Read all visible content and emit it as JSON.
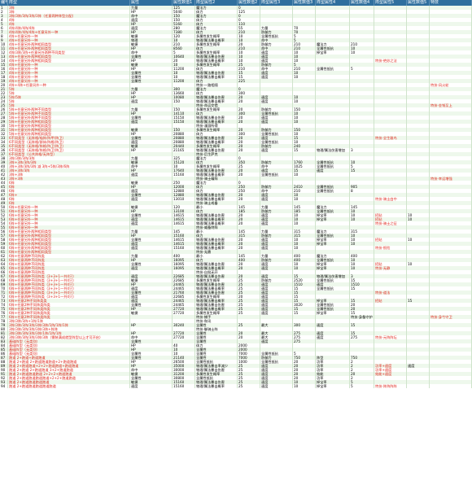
{
  "headers": [
    "编号",
    "阵型",
    "属性",
    "属性数值1",
    "阵型属性2",
    "属性数值2",
    "阵型属性3",
    "属性数值3",
    "阵型属性4",
    "属性数值4",
    "阵型属性5",
    "属性数值5",
    "特技"
  ],
  "rows": [
    [
      "1",
      "3阵",
      "力量",
      "125",
      "魔法力",
      "0",
      "",
      "",
      "",
      "",
      "",
      "",
      ""
    ],
    [
      "2",
      "3阵",
      "HP",
      "5040",
      "体力",
      "125",
      "",
      "",
      "",
      "",
      "",
      "",
      ""
    ],
    [
      "3",
      "3阵/3阵/3阵/3阵/3阵（任意两种阵型分配）",
      "命中",
      "150",
      "魔法力",
      "0",
      "",
      "",
      "",
      "",
      "",
      "",
      ""
    ],
    [
      "4",
      "4阵",
      "速度",
      "150",
      "体力",
      "0",
      "",
      "",
      "",
      "",
      "",
      "",
      ""
    ],
    [
      "5",
      "4阵",
      "HP",
      "5160",
      "体力",
      "110",
      "",
      "",
      "",
      "",
      "",
      "",
      ""
    ],
    [
      "6",
      "4阵/4阵/4阵/4阵",
      "速度",
      "280",
      "魔法力",
      "55",
      "力量",
      "70",
      "",
      "",
      "",
      "",
      ""
    ],
    [
      "7",
      "4阵/4阵/4阵/4阵+任意另外一种",
      "HP",
      "7380",
      "体力",
      "210",
      "防御力",
      "70",
      "",
      "",
      "",
      "",
      ""
    ],
    [
      "8",
      "4阵+任意另外一种",
      "敏捷",
      "120",
      "多属性发生概率",
      "10",
      "全属性抵抗",
      "5",
      "",
      "",
      "",
      "",
      ""
    ],
    [
      "9",
      "4阵+任意另外一种",
      "物理",
      "10",
      "物理/属法暴击概率",
      "10",
      "命中",
      "5",
      "",
      "",
      "",
      "",
      ""
    ],
    [
      "10",
      "4阵+任意另外两种相同类型",
      "敏捷",
      "210",
      "多属性发生概率",
      "20",
      "防御力",
      "210",
      "魔法力",
      "210",
      "",
      "",
      ""
    ],
    [
      "11",
      "4阵+任意另外两种相同类型",
      "HP",
      "8560",
      "体力",
      "210",
      "命中",
      "210",
      "全属性抵抗",
      "10",
      "",
      "",
      ""
    ],
    [
      "12",
      "4阵/3阵/3阵+任意另外两种不同类型",
      "命中",
      "5",
      "多属性发生概率",
      "10",
      "速度",
      "10",
      "掉宝率",
      "10",
      "",
      "",
      ""
    ],
    [
      "13",
      "4阵+任意另外两种相同类型",
      "全属性",
      "10640",
      "物理/属法暴击伤害",
      "10",
      "速度",
      "10",
      "",
      "",
      "",
      "",
      ""
    ],
    [
      "14",
      "4阵+任意另外两种相同类型",
      "HP",
      "20",
      "物理/属法暴击概率",
      "10",
      "速度",
      "10",
      "",
      "",
      "特技-绝妙之法",
      "",
      ""
    ],
    [
      "15",
      "4阵+任意另外一种",
      "敏捷",
      "10",
      "多属性发生概率",
      "25",
      "防御力",
      "5",
      "",
      "",
      "",
      "",
      ""
    ],
    [
      "16",
      "4阵+任意另外一种",
      "HP",
      "11200",
      "体力",
      "210",
      "命中",
      "210",
      "全属性抵抗",
      "5",
      "",
      "",
      ""
    ],
    [
      "17",
      "4阵+任意另外一种",
      "全属性",
      "10",
      "物理/属法暴击伤害",
      "15",
      "速度",
      "10",
      "",
      "",
      "",
      "",
      ""
    ],
    [
      "18",
      "4阵+任意另外一种",
      "全属性",
      "10",
      "物理/属法暴击概率",
      "15",
      "速度",
      "10",
      "",
      "",
      "",
      "",
      ""
    ],
    [
      "19",
      "4阵+任意另外一种",
      "全属性",
      "11200",
      "体力",
      "225",
      "",
      "",
      "",
      "",
      "",
      "",
      ""
    ],
    [
      "20",
      "4阵+4阵+任意另外一种",
      "",
      "",
      "特技-一路相随",
      "",
      "",
      "",
      "",
      "",
      "",
      "",
      "特技-风火轮"
    ],
    [
      "21",
      "5阵",
      "力量",
      "300",
      "魔法力",
      "0",
      "",
      "",
      "",
      "",
      "",
      "",
      ""
    ],
    [
      "22",
      "5阵",
      "HP",
      "13660",
      "体力",
      "300",
      "",
      "",
      "",
      "",
      "",
      "",
      ""
    ],
    [
      "23",
      "5阵/5阵",
      "HP",
      "10080",
      "物理/属法暴击伤害",
      "20",
      "速度",
      "10",
      "",
      "",
      "",
      "",
      ""
    ],
    [
      "24",
      "5阵",
      "速度",
      "150",
      "物理/属法暴击概率",
      "20",
      "速度",
      "10",
      "",
      "",
      "",
      "",
      ""
    ],
    [
      "25",
      "5阵",
      "",
      "",
      "特技-命运交错",
      "",
      "",
      "",
      "",
      "",
      "",
      "",
      "特技-金钱至上"
    ],
    [
      "26",
      "5阵+任意另外两种不同类型",
      "力量",
      "150",
      "多属性发生概率",
      "20",
      "防御力",
      "150",
      "",
      "",
      "",
      "",
      ""
    ],
    [
      "27",
      "5阵+任意另外两种不同类型",
      "HP",
      "14110",
      "体力",
      "300",
      "全属性抵抗",
      "10",
      "",
      "",
      "",
      "",
      ""
    ],
    [
      "28",
      "5阵+任意另外两种不同类型",
      "全属性",
      "15150",
      "物理/属法暴击伤害",
      "20",
      "速度",
      "10",
      "",
      "",
      "",
      "",
      ""
    ],
    [
      "29",
      "5阵+任意另外两种相同类型",
      "速度",
      "15150",
      "物理/属法暴击概率",
      "20",
      "速度",
      "10",
      "",
      "",
      "",
      "",
      ""
    ],
    [
      "30",
      "5阵+任意另外两种相同类型",
      "",
      "",
      "特技-漫游所得",
      "",
      "",
      "",
      "",
      "",
      "",
      "",
      ""
    ],
    [
      "31",
      "5阵+任意另外两种相同类型",
      "敏捷",
      "150",
      "多属性发生概率",
      "20",
      "防御力",
      "150",
      "",
      "",
      "",
      "",
      ""
    ],
    [
      "32",
      "5阵+任意另外两种相同类型",
      "HP",
      "20880",
      "体力",
      "300",
      "全属性抵抗",
      "10",
      "",
      "",
      "",
      "",
      ""
    ],
    [
      "33",
      "6不同类型（无阵格/喵阵/阵甲/阵卫）",
      "全属性",
      "20880",
      "物理/属法暴击伤害",
      "20",
      "速度",
      "15",
      "",
      "",
      "特技-全生雅鸟",
      "",
      ""
    ],
    [
      "34",
      "6不同类型（无阵格/群体/阵格/阵卫）",
      "速度",
      "20880",
      "物理/属法暴击概率",
      "20",
      "全属性抵抗",
      "10",
      "",
      "",
      "",
      "",
      ""
    ],
    [
      "35",
      "6不同类型（无阵格/阵格/阵卫/阵卫）",
      "敏捷",
      "20440",
      "多属性发生概率",
      "20",
      "防御力",
      "240",
      "",
      "",
      "",
      "",
      ""
    ],
    [
      "36",
      "6不同类型（无阵格/阵格/阵卫/阵卫）",
      "HP",
      "21165",
      "物理/属法暴击伤害",
      "20",
      "速度",
      "15",
      "物理/属法伤害增加",
      "3",
      "",
      "",
      ""
    ],
    [
      "37",
      "6不同类型（公共阵格/无阵型）",
      "",
      "",
      "特技-后生萨克",
      "",
      "",
      "",
      "",
      "",
      "",
      "",
      ""
    ],
    [
      "38",
      "3阵/3阵/3阵/3阵",
      "力量",
      "325",
      "魔法力",
      "0",
      "",
      "",
      "",
      "",
      "",
      "",
      ""
    ],
    [
      "39",
      "3阵+3阵/3阵/3阵",
      "敏捷",
      "15120",
      "体力",
      "350",
      "防御力",
      "1760",
      "全属性抵抗",
      "10",
      "",
      "",
      ""
    ],
    [
      "40",
      "3阵+3阵/3阵/3阵 减 3阵+5阵/3阵/6阵",
      "命中",
      "10",
      "多属性发生概率",
      "25",
      "命中",
      "1025",
      "全属性抵抗",
      "5",
      "",
      "",
      ""
    ],
    [
      "41",
      "3阵+3阵/3阵",
      "HP",
      "17640",
      "物理/属法暴击伤害",
      "20",
      "速度",
      "15",
      "速度",
      "15",
      "",
      "",
      ""
    ],
    [
      "42",
      "3阵+3阵",
      "速度",
      "15160",
      "物理/属法暴击概率",
      "20",
      "全属性抵抗",
      "10",
      "",
      "",
      "",
      "",
      ""
    ],
    [
      "43",
      "3阵+3阵",
      "",
      "",
      "特技-骑士精阵",
      "",
      "",
      "",
      "",
      "",
      "",
      "",
      "特技-幸运增强"
    ],
    [
      "44",
      "6阵",
      "敏捷",
      "250",
      "魔法力",
      "0",
      "",
      "",
      "",
      "",
      "",
      "",
      ""
    ],
    [
      "45",
      "6阵",
      "HP",
      "12000",
      "体力",
      "250",
      "防御力",
      "2410",
      "全属性抵抗",
      "905",
      "",
      "",
      ""
    ],
    [
      "46",
      "6阵",
      "速度",
      "12880",
      "体力",
      "250",
      "命中",
      "210",
      "全属性抵抗",
      "8",
      "",
      "",
      ""
    ],
    [
      "47",
      "6阵+",
      "全属性",
      "12880",
      "物理/属法暴击伤害",
      "20",
      "速度",
      "10",
      "",
      "",
      "",
      "",
      ""
    ],
    [
      "48",
      "6阵",
      "速度",
      "13010",
      "物理/属法暴击概率",
      "20",
      "速度",
      "10",
      "",
      "",
      "特技-骑士由中",
      "",
      ""
    ],
    [
      "49",
      "6阵",
      "",
      "",
      "特技-骑士戒备",
      "",
      "",
      "",
      "",
      "",
      "",
      "",
      ""
    ],
    [
      "50",
      "6阵+任意另外一种",
      "敏捷",
      "120",
      "最小",
      "145",
      "力量",
      "145",
      "魔法力",
      "145",
      "",
      "",
      ""
    ],
    [
      "51",
      "6阵+任意另外一种",
      "HP",
      "13100",
      "体力",
      "185",
      "防御力",
      "185",
      "全属性抵抗",
      "10",
      "",
      "",
      ""
    ],
    [
      "52",
      "6阵+任意另外一种",
      "全属性",
      "14615",
      "物理/属法暴击伤害",
      "20",
      "速度",
      "10",
      "掉宝率",
      "10",
      "招贴",
      "10"
    ],
    [
      "53",
      "6阵+任意另外一种",
      "速度",
      "14615",
      "物理/属法暴击概率",
      "20",
      "速度",
      "10",
      "掉宝率",
      "10",
      "招贴",
      "10"
    ],
    [
      "54",
      "6阵+任意另外一种",
      "速度",
      "14615",
      "物理/属法暴击概率",
      "20",
      "速度",
      "10",
      "",
      "",
      "特技-骑士之征",
      ""
    ],
    [
      "55",
      "6阵+任意另外一种",
      "",
      "",
      "特技-威备特阵",
      "",
      "",
      "",
      "",
      "",
      "",
      "",
      ""
    ],
    [
      "56",
      "6阵+任意另外两种相同类型",
      "力量",
      "145",
      "最小",
      "145",
      "力量",
      "315",
      "魔法力",
      "315",
      "",
      "",
      ""
    ],
    [
      "57",
      "6阵+任意另外两种相同类型",
      "HP",
      "15160",
      "体力",
      "315",
      "防御力",
      "315",
      "全属性抵抗",
      "10",
      "",
      "",
      ""
    ],
    [
      "58",
      "6阵+任意另外两种相同类型",
      "全属性",
      "14615",
      "物理/属法暴击伤害",
      "20",
      "速度",
      "10",
      "掉宝率",
      "10",
      "招贴",
      "10"
    ],
    [
      "59",
      "6阵+任意另外两种相同类型",
      "速度",
      "14615",
      "物理/属法暴击概率",
      "20",
      "速度",
      "10",
      "掉宝率",
      "10",
      "",
      "",
      ""
    ],
    [
      "60",
      "6阵+任意另外两种相同类型",
      "速度",
      "15160",
      "物理/属法暴击概率",
      "20",
      "速度",
      "10",
      "",
      "",
      "特技-恨险",
      ""
    ],
    [
      "61",
      "6阵+任意另外两种相同类型",
      "",
      "",
      "特技-无鼎",
      "",
      "",
      "",
      "",
      "",
      "",
      "",
      ""
    ],
    [
      "62",
      "6阵+任意两种不同阵类",
      "力量",
      "400",
      "最小",
      "145",
      "力量",
      "400",
      "魔法力",
      "400",
      "",
      "",
      ""
    ],
    [
      "63",
      "6阵+任意两种不同阵类",
      "HP",
      "16095",
      "体力",
      "400",
      "防御力",
      "400",
      "全属性抵抗",
      "10",
      "",
      "",
      ""
    ],
    [
      "64",
      "6阵+任意两种不同阵类",
      "全属性",
      "16095",
      "物理/属法暴击伤害",
      "20",
      "速度",
      "10",
      "掉宝率",
      "10",
      "招贴",
      "10"
    ],
    [
      "65",
      "6阵+任意两种不同阵类",
      "速度",
      "16095",
      "物理/属法暴击概率",
      "20",
      "速度",
      "10",
      "掉宝率",
      "10",
      "特技-无静",
      ""
    ],
    [
      "66",
      "6阵+任意两种不同阵类",
      "",
      "",
      "特技-自批无开",
      "",
      "",
      "",
      "",
      "",
      "",
      "",
      ""
    ],
    [
      "67",
      "6阵+任意两种不同阵类（3+3+1一共4只）",
      "速度",
      "22685",
      "物理/属法暴击伤害",
      "20",
      "速度",
      "15",
      "物理/属法伤害增加",
      "3",
      "",
      "",
      ""
    ],
    [
      "68",
      "6阵+任意两种不同阵类（3+3+1一共4只）",
      "敏捷",
      "22685",
      "多属性发生概率",
      "25",
      "防御力",
      "2520",
      "全属性抵抗",
      "15",
      "",
      "",
      ""
    ],
    [
      "69",
      "6阵+任意两种不同阵类（3+3+1一共4只）",
      "HP",
      "24465",
      "物理/属法暴击伤害",
      "25",
      "速度",
      "1510",
      "速度",
      "1510",
      "",
      "",
      ""
    ],
    [
      "70",
      "6阵+任意两种不同阵类（3+3+1一共4只）",
      "速度",
      "24465",
      "物理/属法暴击概率",
      "25",
      "速度",
      "15",
      "全属性抵抗",
      "15",
      "",
      "",
      ""
    ],
    [
      "71",
      "6阵+任意两种不同阵类（3+3+1一共4只）",
      "全属性",
      "21760",
      "物理/属法暴击伤害",
      "25",
      "速度",
      "15",
      "",
      "",
      "特技-道法",
      ""
    ],
    [
      "72",
      "6阵+任意两种不同阵类（3+3+1一共4只）",
      "速度",
      "22685",
      "多属性发生概率",
      "20",
      "速度",
      "15",
      "",
      "",
      "",
      "",
      ""
    ],
    [
      "73",
      "6阵+任意2种不同阵类类",
      "速度",
      "24465",
      "物理/属法暴击概率",
      "25",
      "速度",
      "15",
      "掉宝率",
      "15",
      "招贴",
      "15"
    ],
    [
      "74",
      "6阵+任意2种不同阵类阵类",
      "全属性",
      "24465",
      "物理/属法暴击伤害",
      "25",
      "速度",
      "3020",
      "全属性抵抗",
      "20",
      "",
      "",
      ""
    ],
    [
      "75",
      "6阵+任意2种不同阵类阵类",
      "HP",
      "27720",
      "物理/属法暴击概率",
      "25",
      "速度",
      "15",
      "全属性抵抗",
      "20",
      "",
      "",
      ""
    ],
    [
      "76",
      "6阵+任意2种不同阵类阵类",
      "敏捷",
      "27720",
      "多属性发生概率",
      "25",
      "速度",
      "15",
      "掉宝率",
      "15",
      "",
      "",
      ""
    ],
    [
      "77",
      "6阵+任意2种不同阵类阵类",
      "",
      "",
      "特技-捕手",
      "",
      "",
      "",
      "",
      "特技-身备守护",
      "",
      "",
      "特技-身兮守卫"
    ],
    [
      "78",
      "3阵/3阵/3阵+1阵/1阵",
      "",
      "",
      "特技-和讯",
      "",
      "",
      "",
      "",
      "",
      "",
      "",
      ""
    ],
    [
      "79",
      "3阵/3阵/3阵/3阵/3阵/3阵/1阵/1阵/1阵",
      "HP",
      "30240",
      "全属性",
      "25",
      "最大",
      "300",
      "速度",
      "15",
      "",
      "",
      ""
    ],
    [
      "80",
      "3阵/3阵/3阵/3阵/3阵/3阵+阵阵",
      "",
      "",
      "特技-御骑士阵",
      "",
      "",
      "",
      "",
      "",
      "",
      "",
      ""
    ],
    [
      "81",
      "3阵/3阵/3阵/3阵/3阵/1阵/1阵/1阵",
      "HP",
      "27720",
      "全属性",
      "20",
      "最大",
      "275",
      "速度",
      "15",
      "",
      "",
      ""
    ],
    [
      "82",
      "3阵/3阵/3阵/3阵/3阵/3阵（需装满成就型阵型以上才可开启）",
      "命中",
      "27720",
      "全属性",
      "20",
      "最大",
      "275",
      "速度",
      "275",
      "特技-元阵阵坛",
      "",
      ""
    ],
    [
      "83",
      "基础阵型（无类别）",
      "全属性",
      "",
      "全属性",
      "",
      "速度",
      "275",
      "",
      "",
      "",
      "",
      ""
    ],
    [
      "84",
      "基础阵型（无类别）",
      "HP",
      "40",
      "体力",
      "2000",
      "",
      "",
      "",
      "",
      "",
      "",
      ""
    ],
    [
      "85",
      "基础阵型（无类别）",
      "HP",
      "10",
      "全属性",
      "2000",
      "",
      "",
      "",
      "",
      "",
      "",
      ""
    ],
    [
      "86",
      "基础阵型（无类别）",
      "全属性",
      "10",
      "全属性",
      "7000",
      "全属性抵抗",
      "5",
      "",
      "",
      "",
      "",
      ""
    ],
    [
      "87",
      "跑道 2+跑道+跑道跑道",
      "全属性",
      "21140",
      "全属性",
      "7000",
      "防御力",
      "750",
      "阵型",
      "750",
      "",
      "",
      ""
    ],
    [
      "88",
      "跑道 2+跑道 2+跑道跑道跑道+2+跑道跑道",
      "HP",
      "26500",
      "全属性抵抗",
      "1000",
      "全属性抵抗",
      "20",
      "功率",
      "2",
      "",
      "",
      ""
    ],
    [
      "89",
      "跑道 2+跑道跑道+2+2+跑道跑道+跑道跑道",
      "HP",
      "35000",
      "物理/属法暴击率减少",
      "25",
      "速度",
      "20",
      "功率",
      "2",
      "功率+速度",
      "速度",
      ""
    ],
    [
      "90",
      "跑道 2+跑道 2+跑道跑道 3+2+跑道跑道",
      "命中",
      "30000",
      "物理/属法暴击伤害",
      "25",
      "速度",
      "20",
      "功率",
      "2",
      "功率+速度",
      "",
      ""
    ],
    [
      "91",
      "跑道 2+跑道跑道跑道 2+2+2+跑道跑道",
      "敏捷",
      "31200",
      "多属性发生概率",
      "25",
      "速度",
      "20",
      "效能",
      "20",
      "效能+速度",
      "",
      ""
    ],
    [
      "92",
      "跑道 2+跑道跑道跑道跑道+2+2+跑道跑道",
      "全属性",
      "30800",
      "全属性抵抗",
      "25",
      "速度",
      "20",
      "功率",
      "2",
      "",
      "",
      ""
    ],
    [
      "93",
      "跑道 2+跑道跑道跑道跑道",
      "敏捷",
      "15160",
      "物理/属法暴击伤害",
      "25",
      "速度",
      "10",
      "掉宝率",
      "5",
      "",
      "",
      ""
    ],
    [
      "94",
      "跑道 2+跑道跑道跑道跑道跑道",
      "速度",
      "15160",
      "物理/属法暴击概率",
      "25",
      "速度",
      "10",
      "掉宝率",
      "5",
      "特技-阵阵阵阵",
      "",
      ""
    ]
  ]
}
